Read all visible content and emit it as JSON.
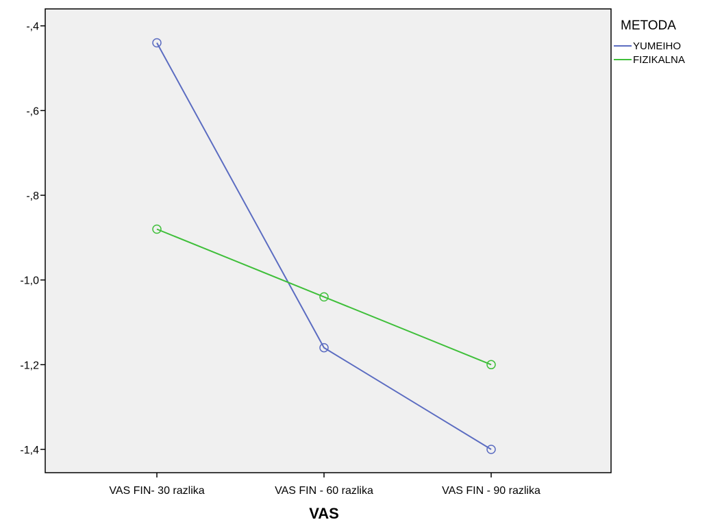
{
  "chart_data": {
    "type": "line",
    "categories": [
      "VAS FIN- 30 razlika",
      "VAS FIN - 60 razlika",
      "VAS FIN - 90 razlika"
    ],
    "series": [
      {
        "name": "YUMEIHO",
        "values": [
          -0.44,
          -1.16,
          -1.4
        ],
        "color": "#5b6cc1"
      },
      {
        "name": "FIZIKALNA",
        "values": [
          -0.88,
          -1.04,
          -1.2
        ],
        "color": "#3fbf3a"
      }
    ],
    "xlabel": "VAS",
    "ylabel": "",
    "ylim": [
      -1.455,
      -0.36
    ],
    "yticks": [
      -0.4,
      -0.6,
      -0.8,
      -1.0,
      -1.2,
      -1.4
    ],
    "ytick_labels": [
      "-,4",
      "-,6",
      "-,8",
      "-1,0",
      "-1,2",
      "-1,4"
    ],
    "legend": {
      "title": "METODA",
      "placement": "top-right outside"
    },
    "grid": false,
    "plot_background": "#f0f0f0",
    "marker": "open-circle"
  }
}
